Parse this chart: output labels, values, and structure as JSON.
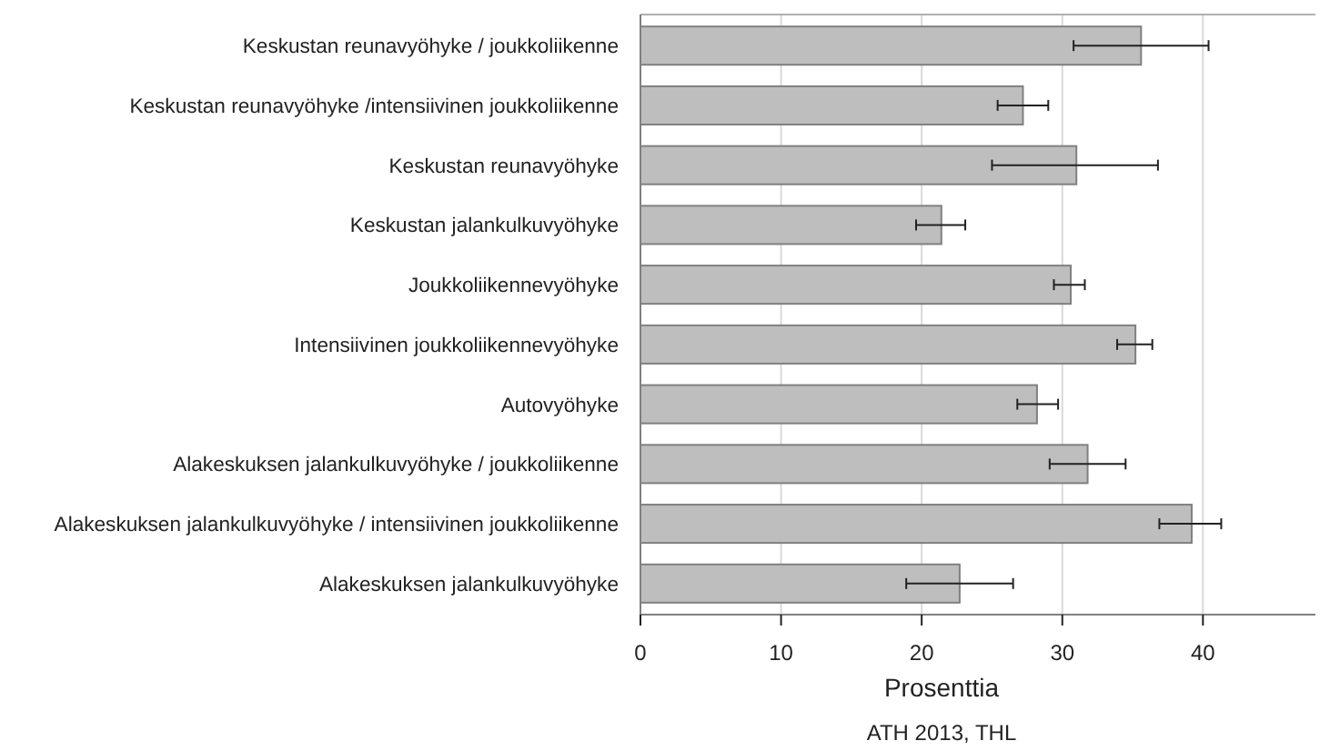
{
  "chart_data": {
    "type": "bar",
    "orientation": "horizontal",
    "categories": [
      "Keskustan reunavyöhyke / joukkoliikenne",
      "Keskustan reunavyöhyke /intensiivinen joukkoliikenne",
      "Keskustan reunavyöhyke",
      "Keskustan jalankulkuvyöhyke",
      "Joukkoliikennevyöhyke",
      "Intensiivinen joukkoliikennevyöhyke",
      "Autovyöhyke",
      "Alakeskuksen jalankulkuvyöhyke / joukkoliikenne",
      "Alakeskuksen jalankulkuvyöhyke / intensiivinen joukkoliikenne",
      "Alakeskuksen jalankulkuvyöhyke"
    ],
    "values": [
      35.6,
      27.2,
      31.0,
      21.4,
      30.6,
      35.2,
      28.2,
      31.8,
      39.2,
      22.7
    ],
    "errors": [
      [
        30.8,
        40.4
      ],
      [
        25.4,
        29.0
      ],
      [
        25.0,
        36.8
      ],
      [
        19.6,
        23.1
      ],
      [
        29.4,
        31.6
      ],
      [
        33.9,
        36.4
      ],
      [
        26.8,
        29.7
      ],
      [
        29.1,
        34.5
      ],
      [
        36.9,
        41.3
      ],
      [
        18.9,
        26.5
      ]
    ],
    "color": "#bebebe",
    "xlim": [
      0,
      48
    ],
    "xticks": [
      0,
      10,
      20,
      30,
      40
    ],
    "grid": "x",
    "xlabel": "Prosenttia",
    "annotations": [
      "ATH 2013, THL"
    ]
  }
}
